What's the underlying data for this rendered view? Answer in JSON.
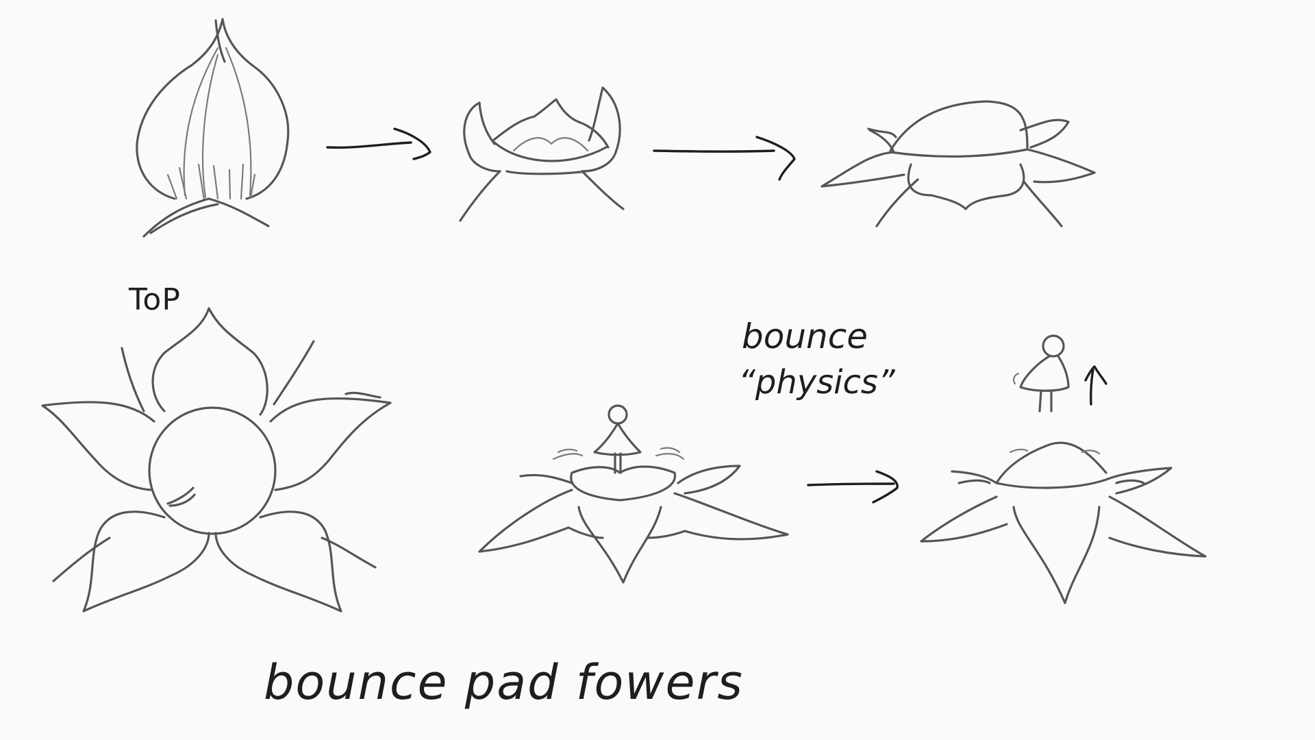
{
  "labels": {
    "top": "ToP",
    "bounce": "bounce",
    "physics": "“physics”",
    "caption": "bounce pad fowers"
  },
  "colors": {
    "paper": "#fafafa",
    "pencil": "#555555",
    "ink": "#1e1e1e"
  }
}
